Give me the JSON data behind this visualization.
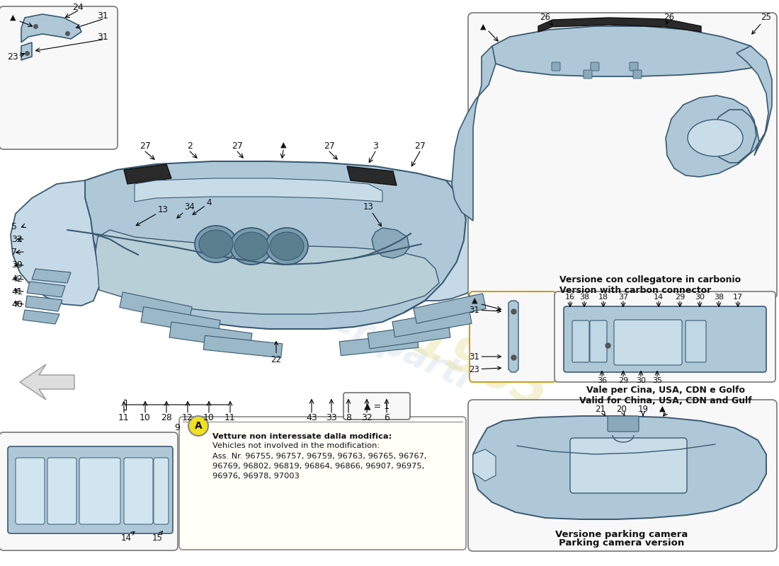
{
  "bg_color": "#ffffff",
  "part_color": "#aec8d8",
  "part_color2": "#c5dae6",
  "part_edge": "#3a5a72",
  "dark_part": "#2a2a2a",
  "label_color": "#111111",
  "box_bg": "#f5f5f5",
  "yellow_bg": "#f0e020",
  "note_text_line1": "Vetture non interessate dalla modifica:",
  "note_text_line2": "Vehicles not involved in the modification:",
  "note_text_line3": "Ass. Nr. 96755, 96757, 96759, 96763, 96765, 96767,",
  "note_text_line4": "96769, 96802, 96819, 96864, 96866, 96907, 96975,",
  "note_text_line5": "96976, 96978, 97003",
  "carbon_text1": "Versione con collegatore in carbonio",
  "carbon_text2": "Version with carbon connector",
  "gulf_text1": "Vale per Cina, USA, CDN e Golfo",
  "gulf_text2": "Valid for China, USA, CDN and Gulf",
  "parking_text1": "Versione parking camera",
  "parking_text2": "Parking camera version",
  "tri": "▲",
  "tri_eq": "▲ = 1",
  "wm_text": "passione per parti",
  "wm_year": "1965"
}
